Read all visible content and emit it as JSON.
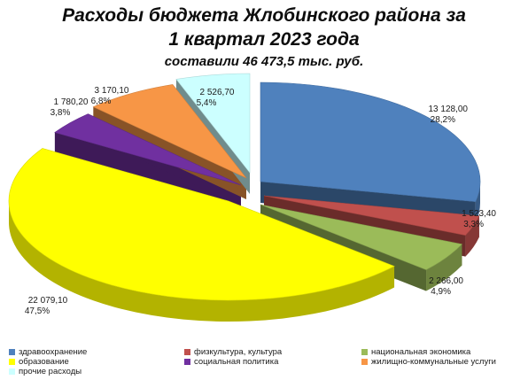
{
  "title": {
    "line1": "Расходы  бюджета Жлобинского района за",
    "line2": "1 квартал 2023 года",
    "line3": "составили 46 473,5 тыс. руб."
  },
  "chart_data": {
    "type": "pie",
    "title": "Расходы  бюджета Жлобинского района за 1 квартал 2023 года",
    "subtitle": "составили 46 473,5 тыс. руб.",
    "slices": [
      {
        "name": "здравоохранение",
        "value": 13128.0,
        "value_label": "13 128,00",
        "percent_label": "28,2%",
        "color": "#4f81bd"
      },
      {
        "name": "физкультура, культура",
        "value": 1523.4,
        "value_label": "1 523,40",
        "percent_label": "3,3%",
        "color": "#c0504d"
      },
      {
        "name": "национальная экономика",
        "value": 2266.0,
        "value_label": "2 266,00",
        "percent_label": "4,9%",
        "color": "#9bbb59"
      },
      {
        "name": "образование",
        "value": 22079.1,
        "value_label": "22 079,10",
        "percent_label": "47,5%",
        "color": "#ffff00"
      },
      {
        "name": "социальная политика",
        "value": 1780.2,
        "value_label": "1 780,20",
        "percent_label": "3,8%",
        "color": "#7030a0"
      },
      {
        "name": "жилищно-коммунальные услуги",
        "value": 3170.1,
        "value_label": "3 170,10",
        "percent_label": "6,8%",
        "color": "#f79646"
      },
      {
        "name": "прочие расходы",
        "value": 2526.7,
        "value_label": "2 526,70",
        "percent_label": "5,4%",
        "color": "#ccffff"
      }
    ],
    "exploded": true,
    "three_d": true,
    "legend_position": "bottom"
  },
  "legend": [
    "здравоохранение",
    "физкультура, культура",
    "национальная экономика",
    "образование",
    "социальная политика",
    "жилищно-коммунальные услуги",
    "прочие расходы"
  ]
}
